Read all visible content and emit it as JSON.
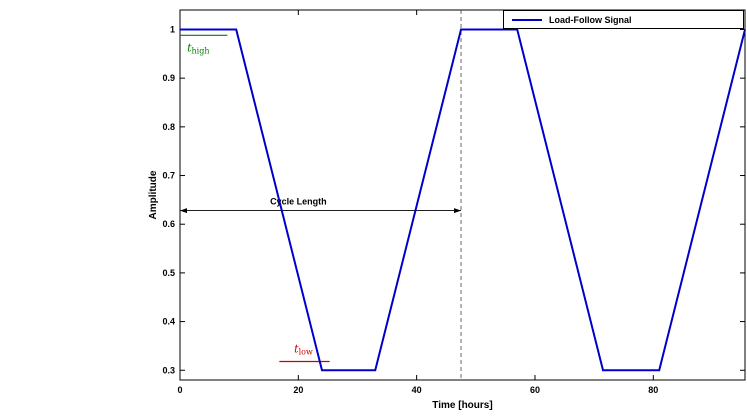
{
  "chart_data": {
    "type": "line",
    "title": "",
    "xlabel": "Time [hours]",
    "ylabel": "Amplitude",
    "xlim": [
      0,
      95.5
    ],
    "ylim": [
      0.28,
      1.04
    ],
    "xticks": [
      0,
      20,
      40,
      60,
      80
    ],
    "yticks": [
      0.3,
      0.4,
      0.5,
      0.6,
      0.7,
      0.8,
      0.9,
      1.0
    ],
    "grid": false,
    "legend": {
      "label": "Load-Follow Signal",
      "position": "upper-right"
    },
    "series": [
      {
        "name": "Load-Follow Signal",
        "color": "#0000cc",
        "x": [
          0,
          9.5,
          24,
          33,
          47.5,
          57,
          71.5,
          81,
          95.5
        ],
        "y": [
          1.0,
          1.0,
          0.3,
          0.3,
          1.0,
          1.0,
          0.3,
          0.3,
          1.0
        ]
      }
    ],
    "annotations": {
      "cycle_divider": {
        "x": 47.5,
        "style": "dashed",
        "color": "#444444"
      },
      "cycle_length": {
        "label": "Cycle Length",
        "x_start": 0,
        "x_end": 47.5,
        "y": 0.628,
        "label_x": 20,
        "color": "#000000"
      },
      "t_high": {
        "base": "t",
        "sub": "high",
        "color": "#007f00",
        "text_x": 1.2,
        "text_y": 0.955,
        "line": {
          "x1": 0,
          "x2": 8,
          "y": 0.988
        }
      },
      "t_low": {
        "base": "t",
        "sub": "low",
        "color": "#cc0000",
        "text_x": 19.3,
        "text_y": 0.337,
        "line": {
          "x1": 16.8,
          "x2": 25.3,
          "y": 0.318
        }
      }
    }
  }
}
